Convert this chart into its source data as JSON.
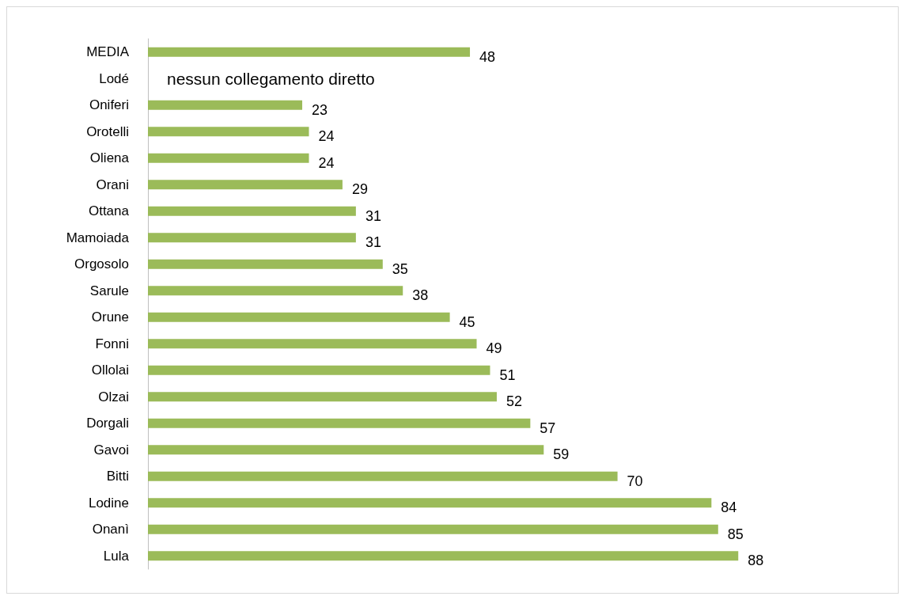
{
  "chart_data": {
    "type": "bar",
    "orientation": "horizontal",
    "categories": [
      "MEDIA",
      "Lodé",
      "Oniferi",
      "Orotelli",
      "Oliena",
      "Orani",
      "Ottana",
      "Mamoiada",
      "Orgosolo",
      "Sarule",
      "Orune",
      "Fonni",
      "Ollolai",
      "Olzai",
      "Dorgali",
      "Gavoi",
      "Bitti",
      "Lodine",
      "Onanì",
      "Lula"
    ],
    "values": [
      48,
      null,
      23,
      24,
      24,
      29,
      31,
      31,
      35,
      38,
      45,
      49,
      51,
      52,
      57,
      59,
      70,
      84,
      85,
      88
    ],
    "color": "#9bbb59",
    "data_labels": true,
    "annotations": [
      "nessun collegamento diretto"
    ]
  }
}
